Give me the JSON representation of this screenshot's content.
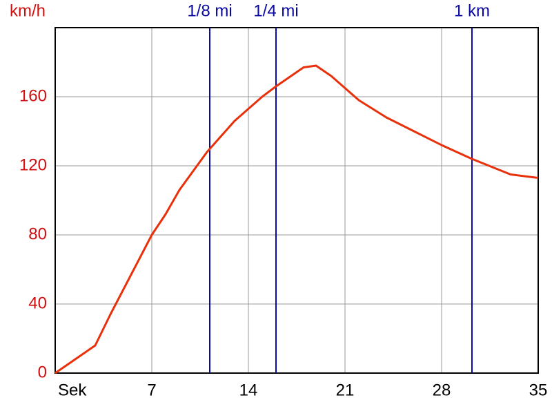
{
  "chart_data": {
    "type": "line",
    "y_label": "km/h",
    "x": [
      0,
      2.9,
      4,
      7,
      8,
      9,
      11,
      13,
      15,
      16,
      18,
      18.9,
      20,
      22,
      24,
      26,
      28,
      30.2,
      33,
      35
    ],
    "series": [
      {
        "color": "#e8300a",
        "values": [
          0,
          16,
          34,
          80,
          92,
          106,
          128,
          146,
          160,
          166,
          177,
          178,
          172,
          158,
          148,
          140,
          132,
          124,
          115,
          113
        ]
      }
    ],
    "xlim": [
      0,
      35
    ],
    "xticks": [
      {
        "value": 0,
        "label": "Sek"
      },
      7,
      14,
      21,
      28,
      35
    ],
    "ylim": [
      0,
      200
    ],
    "yticks": [
      0,
      40,
      80,
      120,
      160
    ],
    "grid": true,
    "markers": [
      {
        "label": "1/8 mi",
        "x": 11.2
      },
      {
        "label": "1/4 mi",
        "x": 16
      },
      {
        "label": "1 km",
        "x": 30.2
      }
    ],
    "marker_color": "#0a0aa0",
    "y_label_color": "#d01010"
  }
}
